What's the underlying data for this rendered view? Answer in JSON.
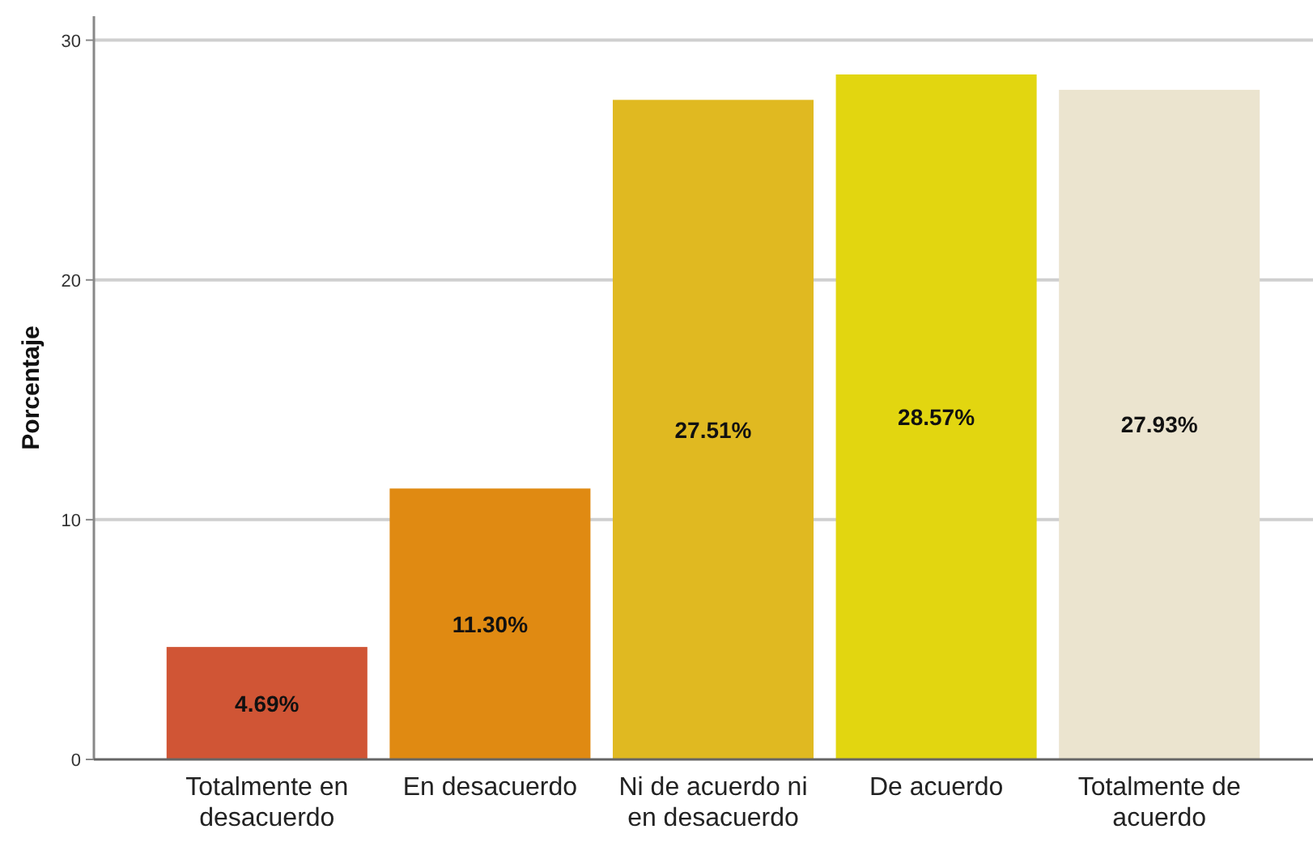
{
  "chart_data": {
    "type": "bar",
    "ylabel": "Porcentaje",
    "categories": [
      "Totalmente en desacuerdo",
      "En desacuerdo",
      "Ni de acuerdo ni en desacuerdo",
      "De acuerdo",
      "Totalmente de acuerdo"
    ],
    "values": [
      4.69,
      11.3,
      27.51,
      28.57,
      27.93
    ],
    "colors": [
      "#d05535",
      "#e08a12",
      "#e0b921",
      "#e2d610",
      "#ebe4cf"
    ],
    "value_labels": [
      "4.69%",
      "11.30%",
      "27.51%",
      "28.57%",
      "27.93%"
    ],
    "ylim": [
      0,
      31
    ],
    "yticks": [
      0,
      10,
      20,
      30
    ],
    "grid": "y"
  }
}
